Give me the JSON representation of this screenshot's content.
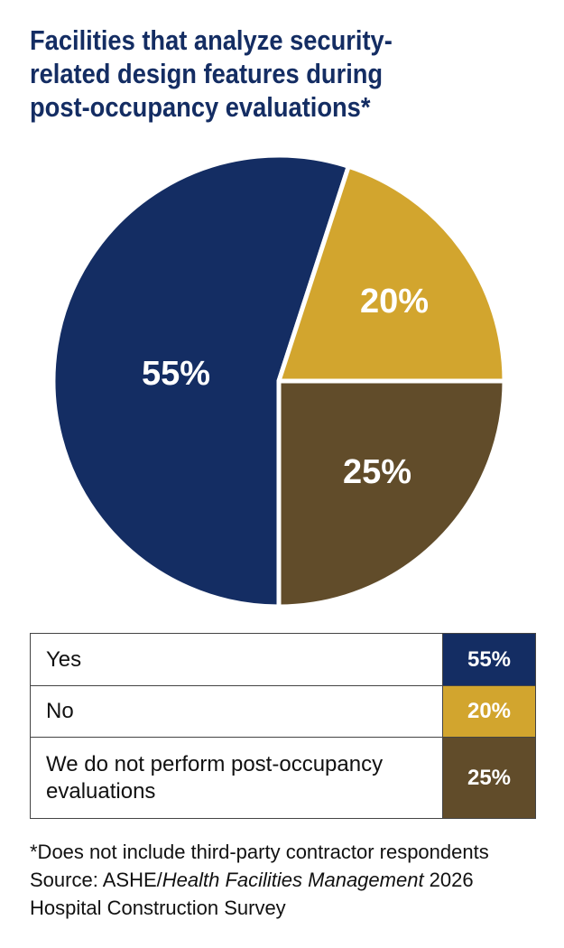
{
  "chart_data": {
    "type": "pie",
    "title": "Facilities that analyze security-related design features during post-occupancy evaluations*",
    "title_lines": [
      "Facilities that analyze security-",
      "related design features during",
      "post-occupancy evaluations*"
    ],
    "slices": [
      {
        "label": "Yes",
        "value": 55,
        "display": "55%",
        "color": "#142d63"
      },
      {
        "label": "No",
        "value": 20,
        "display": "20%",
        "color": "#d2a52e"
      },
      {
        "label": "We do not perform post-occupancy evaluations",
        "value": 25,
        "display": "25%",
        "color": "#614c2a"
      }
    ]
  },
  "legend": [
    {
      "label": "Yes",
      "value": "55%",
      "color": "#142d63"
    },
    {
      "label": "No",
      "value": "20%",
      "color": "#d2a52e"
    },
    {
      "label": "We do not perform post-occupancy evaluations",
      "value": "25%",
      "color": "#614c2a"
    }
  ],
  "footnote": "*Does not include third-party contractor respondents",
  "source": {
    "prefix": "Source: ASHE/",
    "publication": "Health Facilities Management",
    "suffix": " 2026",
    "line2": "Hospital Construction Survey"
  }
}
